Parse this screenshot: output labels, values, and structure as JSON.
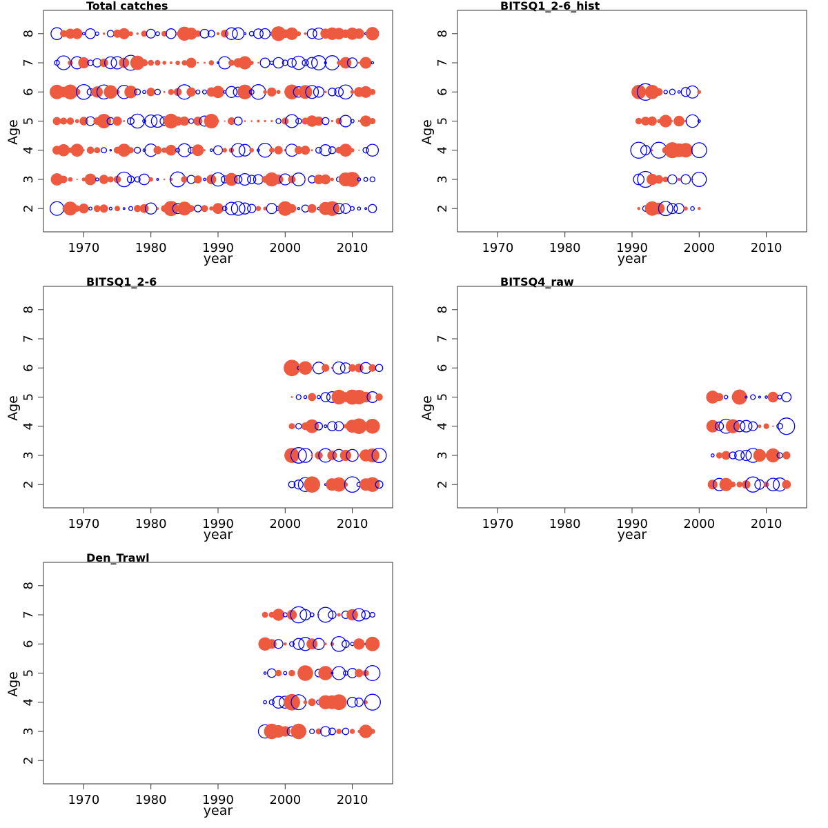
{
  "colors": {
    "positive": "#ee5a3f",
    "negative": "#0000ee"
  },
  "chart_data": [
    {
      "type": "scatter",
      "title": "Total catches",
      "xlabel": "year",
      "ylabel": "Age",
      "xlim": [
        1964,
        2016
      ],
      "ylim": [
        1.2,
        8.8
      ],
      "x_ticks": [
        "1970",
        "1980",
        "1990",
        "2000",
        "2010"
      ],
      "y_ticks": [
        "2",
        "3",
        "4",
        "5",
        "6",
        "7",
        "8"
      ],
      "years": [
        1966,
        2013
      ],
      "ages": [
        2,
        8
      ]
    },
    {
      "type": "scatter",
      "title": "BITSQ1_2-6_hist",
      "xlabel": "year",
      "ylabel": "Age",
      "xlim": [
        1964,
        2016
      ],
      "ylim": [
        1.2,
        8.8
      ],
      "x_ticks": [
        "1970",
        "1980",
        "1990",
        "2000",
        "2010"
      ],
      "y_ticks": [
        "2",
        "3",
        "4",
        "5",
        "6",
        "7",
        "8"
      ],
      "years": [
        1991,
        2000
      ],
      "ages": [
        2,
        6
      ]
    },
    {
      "type": "scatter",
      "title": "BITSQ1_2-6",
      "xlabel": "year",
      "ylabel": "Age",
      "xlim": [
        1964,
        2016
      ],
      "ylim": [
        1.2,
        8.8
      ],
      "x_ticks": [
        "1970",
        "1980",
        "1990",
        "2000",
        "2010"
      ],
      "y_ticks": [
        "2",
        "3",
        "4",
        "5",
        "6",
        "7",
        "8"
      ],
      "years": [
        2001,
        2014
      ],
      "ages": [
        2,
        6
      ]
    },
    {
      "type": "scatter",
      "title": "BITSQ4_raw",
      "xlabel": "year",
      "ylabel": "Age",
      "xlim": [
        1964,
        2016
      ],
      "ylim": [
        1.2,
        8.8
      ],
      "x_ticks": [
        "1970",
        "1980",
        "1990",
        "2000",
        "2010"
      ],
      "y_ticks": [
        "2",
        "3",
        "4",
        "5",
        "6",
        "7",
        "8"
      ],
      "years": [
        2002,
        2013
      ],
      "ages": [
        2,
        5
      ]
    },
    {
      "type": "scatter",
      "title": "Den_Trawl",
      "xlabel": "year",
      "ylabel": "Age",
      "xlim": [
        1964,
        2016
      ],
      "ylim": [
        1.2,
        8.8
      ],
      "x_ticks": [
        "1970",
        "1980",
        "1990",
        "2000",
        "2010"
      ],
      "y_ticks": [
        "2",
        "3",
        "4",
        "5",
        "6",
        "7",
        "8"
      ],
      "years": [
        1997,
        2013
      ],
      "ages": [
        3,
        7
      ]
    }
  ]
}
